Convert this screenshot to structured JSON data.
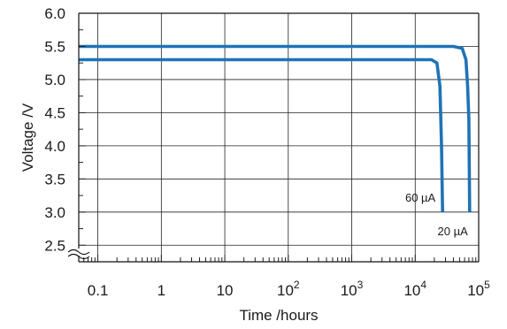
{
  "chart_data": {
    "type": "line",
    "xlabel": "Time /hours",
    "ylabel": "Voltage /V",
    "x_scale": "log",
    "xlim": [
      0.05,
      100000
    ],
    "ylim": [
      2.25,
      6.0
    ],
    "y_axis_break": true,
    "grid": true,
    "y_ticks": [
      "2.5",
      "3.0",
      "3.5",
      "4.0",
      "4.5",
      "5.0",
      "5.5",
      "6.0"
    ],
    "y_tick_values": [
      2.5,
      3.0,
      3.5,
      4.0,
      4.5,
      5.0,
      5.5,
      6.0
    ],
    "x_ticks": [
      {
        "value": 0.1,
        "base": "0.1",
        "exp": ""
      },
      {
        "value": 1,
        "base": "1",
        "exp": ""
      },
      {
        "value": 10,
        "base": "10",
        "exp": ""
      },
      {
        "value": 100,
        "base": "10",
        "exp": "2"
      },
      {
        "value": 1000,
        "base": "10",
        "exp": "3"
      },
      {
        "value": 10000,
        "base": "10",
        "exp": "4"
      },
      {
        "value": 100000,
        "base": "10",
        "exp": "5"
      }
    ],
    "line_color": "#1f73b7",
    "series": [
      {
        "name": "20 µA",
        "points": [
          [
            0.05,
            5.5
          ],
          [
            40000,
            5.5
          ],
          [
            55000,
            5.47
          ],
          [
            63000,
            5.3
          ],
          [
            67000,
            4.9
          ],
          [
            70000,
            4.4
          ],
          [
            72000,
            3.0
          ]
        ]
      },
      {
        "name": "60 µA",
        "points": [
          [
            0.05,
            5.3
          ],
          [
            18000,
            5.3
          ],
          [
            22000,
            5.25
          ],
          [
            24500,
            4.9
          ],
          [
            26000,
            4.0
          ],
          [
            27000,
            3.0
          ]
        ]
      }
    ],
    "annotations": [
      {
        "text": "60 µA",
        "series": "60 µA"
      },
      {
        "text": "20 µA",
        "series": "20 µA"
      }
    ]
  }
}
